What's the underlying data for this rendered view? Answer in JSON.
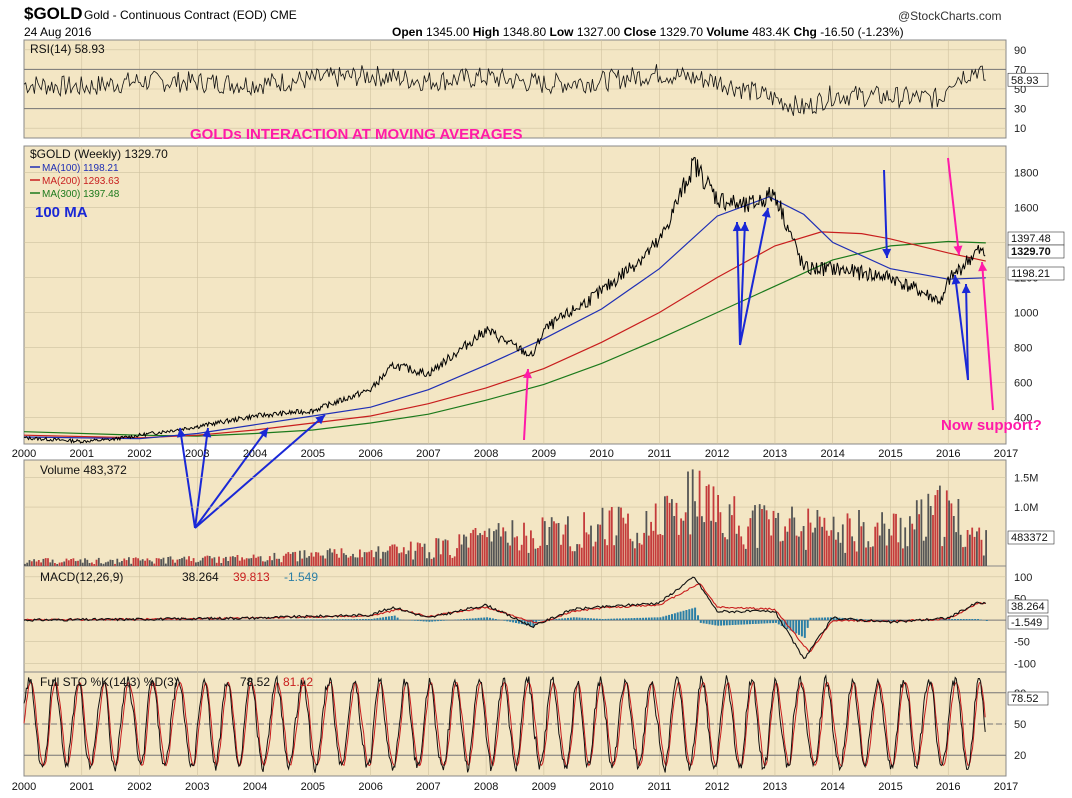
{
  "header": {
    "symbol": "$GOLD",
    "description": "Gold - Continuous Contract (EOD) CME",
    "date": "24 Aug 2016",
    "open_label": "Open",
    "open": "1345.00",
    "high_label": "High",
    "high": "1348.80",
    "low_label": "Low",
    "low": "1327.00",
    "close_label": "Close",
    "close": "1329.70",
    "volume_label": "Volume",
    "volume": "483.4K",
    "chg_label": "Chg",
    "chg": "-16.50 (-1.23%)",
    "credit": "@StockCharts.com"
  },
  "colors": {
    "panel_bg": "#f3e6c4",
    "price": "#000000",
    "ma100": "#1f2fb5",
    "ma200": "#c81e1e",
    "ma300": "#1c7a1c",
    "annotation_blue": "#1a28d6",
    "annotation_pink": "#ff1aa8",
    "volume_up": "#c43b3b",
    "volume_down": "#555555",
    "macd_hist": "#2b7fa6"
  },
  "chart_data": [
    {
      "type": "line",
      "name": "rsi",
      "label": "RSI(14) 58.93",
      "last_value": "58.93",
      "y_ticks": [
        "90",
        "70",
        "50",
        "30",
        "10"
      ],
      "ylim": [
        0,
        100
      ],
      "reference_lines": [
        70,
        30
      ],
      "x_ticks": [],
      "series": [
        {
          "x": [
            2000,
            2001,
            2002,
            2003,
            2004,
            2005,
            2006,
            2007,
            2008,
            2009,
            2010,
            2011,
            2012,
            2013,
            2013.5,
            2014,
            2015,
            2015.9,
            2016,
            2016.5,
            2016.65
          ],
          "values": [
            55,
            52,
            58,
            57,
            55,
            60,
            64,
            58,
            62,
            55,
            58,
            66,
            58,
            40,
            30,
            44,
            42,
            40,
            58,
            70,
            58.93
          ]
        }
      ]
    },
    {
      "type": "line",
      "name": "price",
      "title": "GOLDs INTERACTION AT  MOVING AVERAGES",
      "subtitle": "100 MA",
      "legend": [
        {
          "label": "$GOLD (Weekly) 1329.70"
        },
        {
          "label": "MA(100) 1198.21"
        },
        {
          "label": "MA(200) 1293.63"
        },
        {
          "label": "MA(300) 1397.48"
        }
      ],
      "right_labels": [
        "1397.48",
        "1329.70",
        "1198.21"
      ],
      "y_ticks": [
        "1800",
        "1600",
        "1400",
        "1200",
        "1000",
        "800",
        "600",
        "400"
      ],
      "ylim": [
        250,
        1950
      ],
      "x_ticks": [
        "2000",
        "2001",
        "2002",
        "2003",
        "2004",
        "2005",
        "2006",
        "2007",
        "2008",
        "2009",
        "2010",
        "2011",
        "2012",
        "2013",
        "2014",
        "2015",
        "2016",
        "2017"
      ],
      "xlim": [
        2000,
        2017
      ],
      "annotation": "Now support?",
      "series": [
        {
          "x": [
            2000,
            2001,
            2001.5,
            2002,
            2003,
            2004,
            2005,
            2006,
            2006.4,
            2007,
            2008,
            2008.8,
            2009,
            2010,
            2011,
            2011.6,
            2012,
            2012.5,
            2013,
            2013.5,
            2014,
            2015,
            2015.9,
            2016,
            2016.5,
            2016.65
          ],
          "values": [
            285,
            265,
            275,
            300,
            350,
            410,
            440,
            560,
            700,
            650,
            900,
            750,
            900,
            1120,
            1400,
            1850,
            1650,
            1600,
            1680,
            1250,
            1250,
            1200,
            1060,
            1180,
            1350,
            1329.7
          ]
        },
        {
          "x": [
            2000,
            2002,
            2003,
            2004,
            2005,
            2006,
            2007,
            2008,
            2009,
            2010,
            2011,
            2012,
            2012.9,
            2013.5,
            2014,
            2015,
            2016,
            2016.65
          ],
          "values": [
            290,
            280,
            310,
            360,
            410,
            460,
            560,
            700,
            850,
            1020,
            1250,
            1550,
            1660,
            1560,
            1400,
            1250,
            1190,
            1198.21
          ]
        },
        {
          "x": [
            2000,
            2002,
            2003,
            2004,
            2005,
            2006,
            2007,
            2008,
            2009,
            2010,
            2011,
            2012,
            2013,
            2013.8,
            2014.5,
            2015,
            2016,
            2016.65
          ],
          "values": [
            300,
            285,
            300,
            330,
            370,
            410,
            480,
            570,
            680,
            830,
            1000,
            1200,
            1380,
            1460,
            1450,
            1420,
            1340,
            1293.63
          ]
        },
        {
          "x": [
            2000,
            2002,
            2003,
            2004,
            2005,
            2006,
            2007,
            2008,
            2009,
            2010,
            2011,
            2012,
            2013,
            2014,
            2015,
            2016,
            2016.65
          ],
          "values": [
            320,
            300,
            295,
            310,
            330,
            370,
            420,
            500,
            590,
            710,
            850,
            1000,
            1150,
            1300,
            1380,
            1405,
            1397.48
          ]
        }
      ]
    },
    {
      "type": "bar",
      "name": "volume",
      "label": "Volume 483,372",
      "right_label": "483372",
      "y_ticks": [
        "1.5M",
        "1.0M"
      ],
      "ylim": [
        0,
        1800000
      ],
      "x_ticks": [],
      "series": [
        {
          "x": [
            2000,
            2002,
            2004,
            2006,
            2007,
            2008,
            2009,
            2010,
            2011,
            2011.6,
            2012,
            2013,
            2014,
            2015,
            2016,
            2016.65
          ],
          "values": [
            100000,
            120000,
            160000,
            280000,
            350000,
            550000,
            700000,
            800000,
            900000,
            1400000,
            1000000,
            900000,
            700000,
            800000,
            1100000,
            483372
          ]
        }
      ]
    },
    {
      "type": "line",
      "name": "macd",
      "label": "MACD(12,26,9)",
      "macd_value": "38.264",
      "signal_value": "39.813",
      "hist_value": "-1.549",
      "right_labels": [
        "38.264",
        "-1.549"
      ],
      "y_ticks": [
        "100",
        "50",
        "-50",
        "-100"
      ],
      "ylim": [
        -120,
        125
      ],
      "x_ticks": [],
      "series": [
        {
          "x": [
            2000,
            2002,
            2004,
            2006,
            2006.4,
            2007,
            2008,
            2008.8,
            2009.5,
            2010,
            2011,
            2011.6,
            2012,
            2013,
            2013.5,
            2014,
            2015,
            2016,
            2016.5,
            2016.65
          ],
          "values": [
            0,
            2,
            5,
            12,
            30,
            5,
            35,
            -15,
            25,
            30,
            40,
            100,
            20,
            20,
            -90,
            5,
            -5,
            5,
            40,
            38.264
          ]
        },
        {
          "x": [
            2000,
            2002,
            2004,
            2006,
            2006.5,
            2007,
            2008,
            2008.9,
            2009.5,
            2010,
            2011,
            2011.7,
            2012,
            2013,
            2013.6,
            2014,
            2015,
            2016,
            2016.5,
            2016.65
          ],
          "values": [
            0,
            2,
            5,
            10,
            25,
            8,
            30,
            -8,
            20,
            28,
            35,
            85,
            30,
            25,
            -75,
            0,
            -3,
            3,
            38,
            39.813
          ]
        }
      ]
    },
    {
      "type": "line",
      "name": "stochastic",
      "label": "Full STO %K(14,3) %D(3)",
      "k_value": "78.52",
      "d_value": "81.12",
      "right_label": "78.52",
      "y_ticks": [
        "80",
        "50",
        "20"
      ],
      "ylim": [
        0,
        100
      ],
      "reference_lines": [
        80,
        50,
        20
      ],
      "x_ticks": [
        "2000",
        "2001",
        "2002",
        "2003",
        "2004",
        "2005",
        "2006",
        "2007",
        "2008",
        "2009",
        "2010",
        "2011",
        "2012",
        "2013",
        "2014",
        "2015",
        "2016",
        "2017"
      ],
      "xlim": [
        2000,
        2017
      ]
    }
  ]
}
